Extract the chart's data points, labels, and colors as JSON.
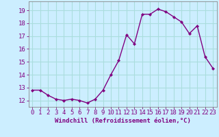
{
  "x": [
    0,
    1,
    2,
    3,
    4,
    5,
    6,
    7,
    8,
    9,
    10,
    11,
    12,
    13,
    14,
    15,
    16,
    17,
    18,
    19,
    20,
    21,
    22,
    23
  ],
  "y": [
    12.8,
    12.8,
    12.4,
    12.1,
    12.0,
    12.1,
    12.0,
    11.8,
    12.1,
    12.8,
    14.0,
    15.1,
    17.1,
    16.4,
    18.7,
    18.7,
    19.1,
    18.9,
    18.5,
    18.1,
    17.2,
    17.8,
    15.4,
    14.5
  ],
  "line_color": "#800080",
  "marker": "D",
  "marker_size": 2.2,
  "bg_color": "#cceeff",
  "grid_color": "#aadddd",
  "ylabel_ticks": [
    12,
    13,
    14,
    15,
    16,
    17,
    18,
    19
  ],
  "xtick_labels": [
    "0",
    "1",
    "2",
    "3",
    "4",
    "5",
    "6",
    "7",
    "8",
    "9",
    "10",
    "11",
    "12",
    "13",
    "14",
    "15",
    "16",
    "17",
    "18",
    "19",
    "20",
    "21",
    "22",
    "23"
  ],
  "xlabel": "Windchill (Refroidissement éolien,°C)",
  "ylim": [
    11.5,
    19.7
  ],
  "xlim": [
    -0.5,
    23.5
  ],
  "xlabel_color": "#800080",
  "tick_color": "#800080",
  "font_family": "monospace",
  "line_width": 1.0,
  "tick_fontsize": 6.5,
  "xlabel_fontsize": 6.5
}
